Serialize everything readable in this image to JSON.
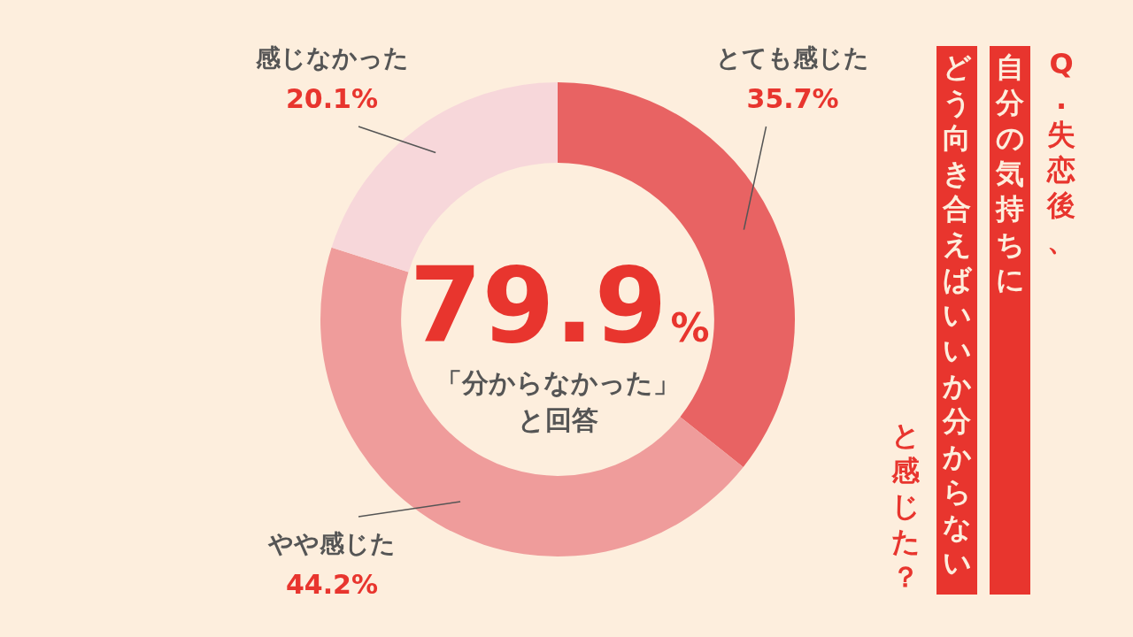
{
  "chart_data": {
    "type": "donut",
    "title": "Q.失恋後、",
    "subtitle": "自分の気持ちに",
    "categories": [
      "とても感じた",
      "やや感じた",
      "感じなかった"
    ],
    "values": [
      35.7,
      44.2,
      20.1
    ],
    "value_labels": [
      "35.7%",
      "44.2%",
      "20.1%"
    ],
    "colors": [
      "#e86363",
      "#ef9c9b",
      "#f7d7da"
    ],
    "annotations": [
      "79.9%",
      "「分からなかった」と回答",
      "どう向き合えばいいか分からない",
      "と感じた？"
    ],
    "legend": false
  }
}
